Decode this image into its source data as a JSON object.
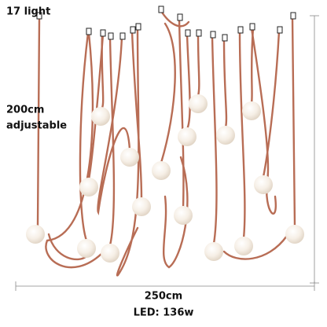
{
  "labels": {
    "count": "17 light",
    "height": "200cm",
    "height_note": "adjustable",
    "width": "250cm",
    "power": "LED: 136w"
  }
}
